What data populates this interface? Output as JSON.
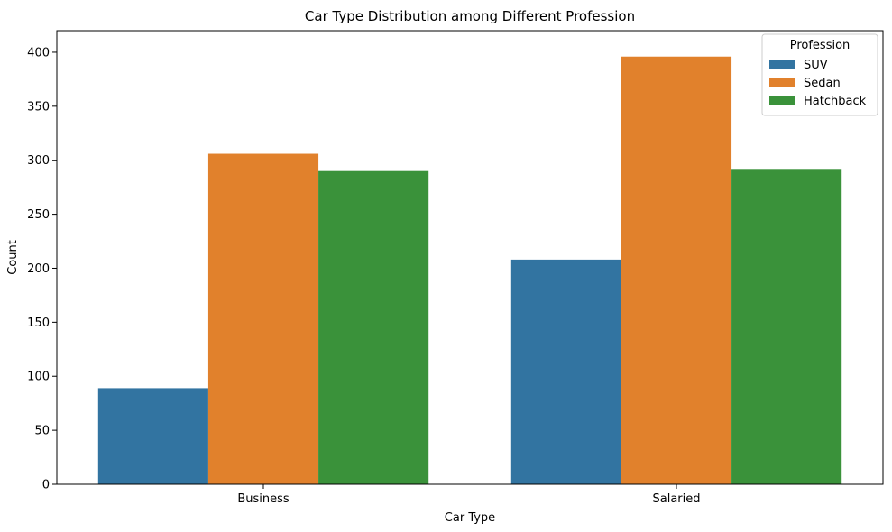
{
  "chart_data": {
    "type": "bar",
    "title": "Car Type Distribution among Different Profession",
    "xlabel": "Car Type",
    "ylabel": "Count",
    "categories": [
      "Business",
      "Salaried"
    ],
    "series": [
      {
        "name": "SUV",
        "values": [
          89,
          208
        ],
        "color": "#3274a1"
      },
      {
        "name": "Sedan",
        "values": [
          306,
          396
        ],
        "color": "#e1812c"
      },
      {
        "name": "Hatchback",
        "values": [
          290,
          292
        ],
        "color": "#3a923a"
      }
    ],
    "ylim": [
      0,
      420
    ],
    "yticks": [
      0,
      50,
      100,
      150,
      200,
      250,
      300,
      350,
      400
    ],
    "legend": {
      "title": "Profession",
      "placement": "top-right"
    },
    "grid": false
  }
}
